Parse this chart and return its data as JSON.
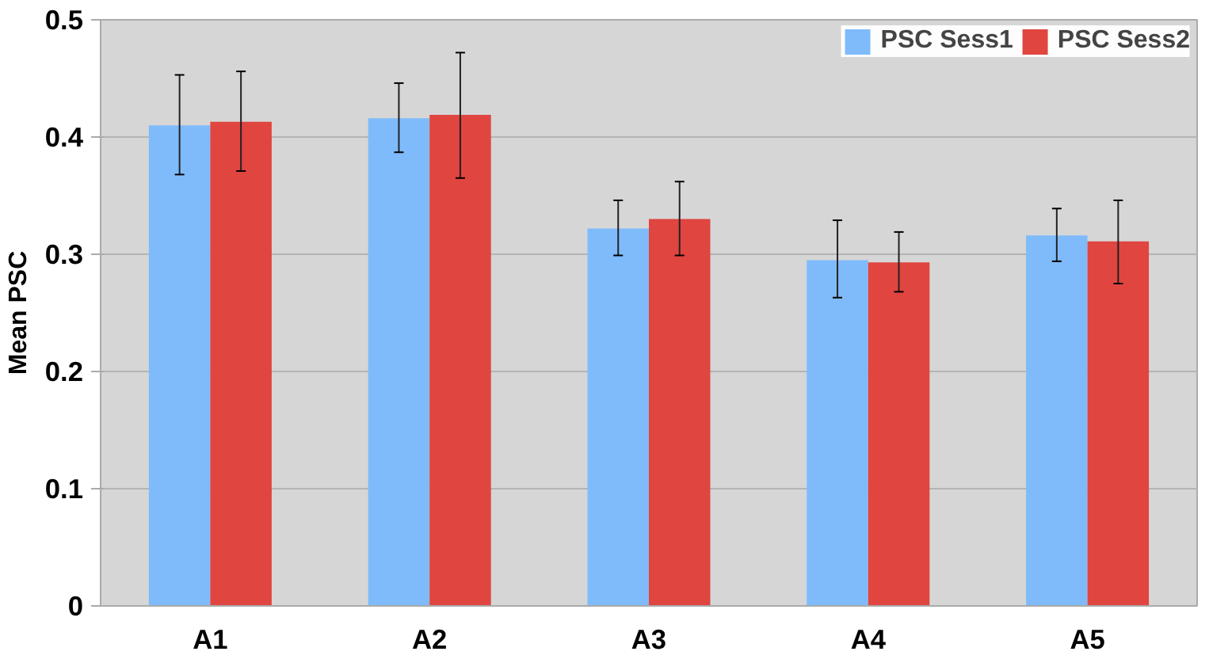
{
  "chart_data": {
    "type": "bar",
    "ylabel": "Mean PSC",
    "categories": [
      "A1",
      "A2",
      "A3",
      "A4",
      "A5"
    ],
    "series": [
      {
        "name": "PSC Sess1",
        "color": "#7fbbfb",
        "values": [
          0.41,
          0.416,
          0.322,
          0.295,
          0.316
        ],
        "errors": [
          [
            0.368,
            0.453
          ],
          [
            0.387,
            0.446
          ],
          [
            0.299,
            0.346
          ],
          [
            0.263,
            0.329
          ],
          [
            0.294,
            0.339
          ]
        ]
      },
      {
        "name": "PSC Sess2",
        "color": "#e04540",
        "values": [
          0.413,
          0.419,
          0.33,
          0.293,
          0.311
        ],
        "errors": [
          [
            0.371,
            0.456
          ],
          [
            0.365,
            0.472
          ],
          [
            0.299,
            0.362
          ],
          [
            0.268,
            0.319
          ],
          [
            0.275,
            0.346
          ]
        ]
      }
    ],
    "ylim": [
      0,
      0.5
    ],
    "yticks": [
      0,
      0.1,
      0.2,
      0.3,
      0.4,
      0.5
    ],
    "grid": "y",
    "legend": "top right"
  }
}
